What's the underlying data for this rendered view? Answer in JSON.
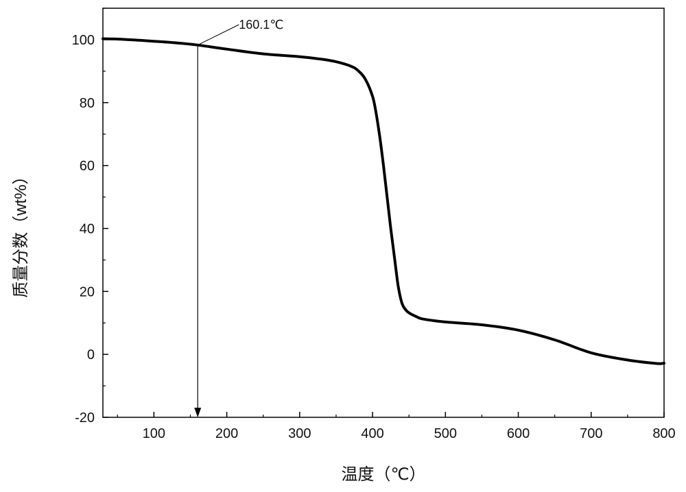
{
  "chart_data": {
    "type": "line",
    "title": "",
    "xlabel": "温度（℃）",
    "ylabel": "质量分数（wt%）",
    "xlim": [
      30,
      800
    ],
    "ylim": [
      -20,
      110
    ],
    "grid": false,
    "legend": "none",
    "x_ticks": [
      100,
      200,
      300,
      400,
      500,
      600,
      700,
      800
    ],
    "y_ticks": [
      -20,
      0,
      20,
      40,
      60,
      80,
      100
    ],
    "x_tick_labels": [
      "100",
      "200",
      "300",
      "400",
      "500",
      "600",
      "700",
      "800"
    ],
    "y_tick_labels": [
      "-20",
      "0",
      "20",
      "40",
      "60",
      "80",
      "100"
    ],
    "series": [
      {
        "color": "#000000",
        "x": [
          30,
          50,
          80,
          100,
          130,
          160.1,
          200,
          250,
          300,
          330,
          350,
          370,
          380,
          390,
          400,
          405,
          410,
          415,
          420,
          425,
          430,
          435,
          440,
          445,
          450,
          460,
          470,
          500,
          550,
          600,
          650,
          700,
          750,
          790,
          800
        ],
        "y": [
          100.3,
          100.2,
          99.8,
          99.5,
          99.0,
          98.3,
          97.0,
          95.5,
          94.6,
          93.8,
          93.0,
          91.6,
          90.2,
          87.5,
          82.0,
          76.5,
          69.0,
          60.0,
          50.0,
          40.0,
          31.0,
          22.0,
          16.5,
          14.3,
          13.2,
          12.0,
          11.2,
          10.3,
          9.4,
          7.7,
          4.6,
          0.5,
          -1.8,
          -2.9,
          -2.8
        ]
      }
    ],
    "annotations": [
      {
        "text": "160.1℃",
        "x": 160.1,
        "y": 98.3,
        "arrow_to_y": -20
      }
    ]
  }
}
